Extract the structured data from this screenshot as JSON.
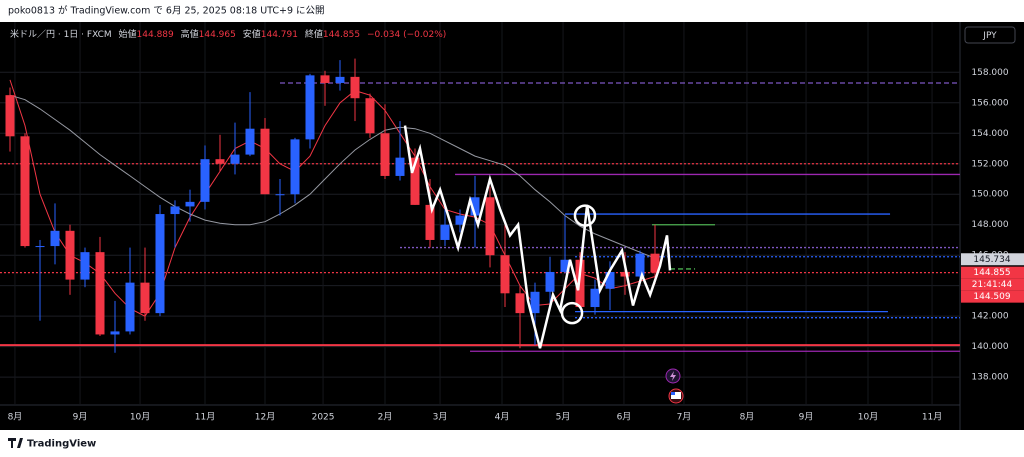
{
  "header": {
    "text": "poko0813 が TradingView.com で 6月 25, 2025 08:18 UTC+9 に公開"
  },
  "footer": {
    "brand": "TradingView"
  },
  "chart_data": {
    "type": "candlestick",
    "symbol": "米ドル／円 · 1日 · FXCM",
    "legend": {
      "open_label": "始値",
      "open": 144.889,
      "high_label": "高値",
      "high": 144.965,
      "low_label": "安値",
      "low": 144.791,
      "close_label": "終値",
      "close": 144.855,
      "change": "−0.034 (−0.02%)"
    },
    "currency": "JPY",
    "up_color": "#2962ff",
    "down_color": "#f23645",
    "x": [
      0,
      1,
      2,
      3,
      4,
      5,
      6,
      7,
      8,
      9,
      10,
      11,
      12,
      13,
      14,
      15,
      16,
      17,
      18,
      19,
      20,
      21,
      22,
      23,
      24,
      25,
      26,
      27,
      28,
      29,
      30,
      31,
      32,
      33,
      34,
      35,
      36,
      37,
      38,
      39,
      40,
      41,
      42,
      43
    ],
    "open": [
      156.5,
      153.8,
      146.6,
      146.6,
      147.6,
      144.4,
      146.2,
      140.8,
      141.0,
      144.2,
      142.2,
      148.7,
      149.2,
      149.5,
      152.3,
      152.0,
      152.6,
      154.3,
      150.0,
      150.0,
      153.6,
      157.8,
      157.3,
      157.7,
      156.3,
      154.0,
      151.2,
      152.4,
      149.3,
      147.0,
      148.0,
      148.6,
      149.8,
      146.0,
      143.5,
      142.2,
      143.6,
      144.9,
      145.7,
      142.6,
      143.8,
      144.9,
      144.6,
      146.1
    ],
    "high": [
      157.0,
      154.0,
      147.0,
      149.4,
      148.0,
      146.5,
      147.2,
      143.0,
      146.5,
      146.5,
      149.3,
      149.6,
      150.3,
      153.2,
      153.9,
      154.7,
      156.7,
      155.0,
      151.0,
      153.7,
      157.9,
      158.1,
      158.8,
      158.9,
      156.6,
      155.9,
      154.8,
      153.0,
      151.0,
      149.2,
      149.0,
      151.2,
      150.5,
      148.0,
      144.0,
      144.2,
      145.9,
      148.6,
      146.2,
      144.4,
      145.6,
      146.2,
      146.3,
      148.0
    ],
    "low": [
      152.8,
      146.5,
      141.7,
      145.4,
      143.4,
      143.9,
      140.7,
      139.6,
      140.8,
      141.7,
      142.0,
      146.5,
      148.2,
      149.0,
      151.5,
      151.3,
      152.5,
      150.0,
      148.6,
      149.4,
      153.0,
      155.8,
      156.8,
      154.8,
      153.7,
      151.0,
      150.9,
      149.3,
      146.5,
      146.6,
      147.5,
      146.5,
      145.2,
      142.6,
      139.9,
      140.1,
      142.4,
      144.8,
      142.5,
      142.1,
      142.4,
      143.4,
      144.0,
      144.1
    ],
    "close": [
      153.8,
      146.6,
      146.6,
      147.6,
      144.4,
      146.2,
      140.8,
      141.0,
      144.2,
      142.2,
      148.7,
      149.2,
      149.5,
      152.3,
      152.0,
      152.6,
      154.3,
      150.0,
      150.0,
      153.6,
      157.8,
      157.3,
      157.7,
      156.3,
      154.0,
      151.2,
      152.4,
      149.3,
      147.0,
      148.0,
      148.6,
      149.8,
      146.0,
      143.5,
      142.2,
      143.6,
      144.9,
      145.7,
      142.6,
      143.8,
      144.9,
      144.6,
      146.1,
      144.855
    ],
    "moving_averages": [
      {
        "color": "#f23645",
        "values": [
          157.5,
          154.5,
          150.0,
          147.5,
          146.0,
          145.5,
          144.8,
          143.5,
          142.5,
          142.0,
          143.5,
          146.5,
          148.5,
          150.0,
          151.5,
          153.0,
          153.5,
          153.0,
          152.0,
          151.5,
          152.5,
          154.5,
          156.0,
          156.8,
          156.5,
          155.5,
          154.0,
          152.5,
          150.5,
          149.0,
          148.7,
          148.5,
          148.0,
          146.0,
          144.0,
          142.7,
          142.8,
          143.8,
          144.8,
          144.5,
          143.8,
          144.0,
          144.3,
          144.6
        ]
      },
      {
        "color": "#9598a1",
        "values": [
          156.5,
          156.2,
          155.6,
          154.9,
          154.2,
          153.4,
          152.6,
          151.9,
          151.2,
          150.5,
          149.8,
          149.2,
          148.7,
          148.3,
          148.1,
          148.0,
          148.0,
          148.2,
          148.7,
          149.3,
          150.0,
          151.0,
          152.0,
          152.9,
          153.6,
          154.2,
          154.4,
          154.3,
          154.0,
          153.5,
          153.0,
          152.5,
          152.2,
          151.9,
          151.2,
          150.3,
          149.5,
          148.6,
          147.9,
          147.4,
          147.0,
          146.6,
          146.2,
          145.8
        ]
      }
    ],
    "zigzag": {
      "color": "#ffffff",
      "x": [
        26.33,
        26.8,
        27.33,
        28.13,
        28.67,
        29.87,
        30.67,
        31.2,
        32,
        32.67,
        33.33,
        33.87,
        34.53,
        35.33,
        36.2,
        36.67,
        37.33,
        37.87,
        38.47,
        39.33,
        40,
        40.8,
        41.53,
        42.13,
        42.67,
        43.33,
        43.8,
        44
      ],
      "y": [
        154.5,
        151.4,
        153,
        149,
        150.3,
        146.5,
        149.6,
        148,
        151,
        149,
        147.3,
        148,
        143,
        139.9,
        143.4,
        142.4,
        145.7,
        143.7,
        149.3,
        143.7,
        145,
        146.3,
        142.7,
        144.7,
        143.4,
        145.3,
        147.3,
        145
      ]
    },
    "circles": [
      {
        "x": 38.33,
        "y": 148.6
      },
      {
        "x": 37.47,
        "y": 142.2
      }
    ],
    "levels": [
      {
        "value": 157.3,
        "from": 18,
        "to": 63.33,
        "color": "#7e57c2",
        "style": "dashed"
      },
      {
        "value": 152.0,
        "from": -0.67,
        "to": 63.33,
        "color": "#f23645",
        "style": "dotted"
      },
      {
        "value": 151.3,
        "from": 29.67,
        "to": 63.33,
        "color": "#9c27b0",
        "style": "solid"
      },
      {
        "value": 148.7,
        "from": 37,
        "to": 58.67,
        "color": "#2962ff",
        "style": "solid"
      },
      {
        "value": 148.0,
        "from": 42.8,
        "to": 47,
        "color": "#4caf50",
        "style": "solid"
      },
      {
        "value": 146.5,
        "from": 26,
        "to": 63.33,
        "color": "#7e57c2",
        "style": "dotted"
      },
      {
        "value": 145.9,
        "from": 37.67,
        "to": 63.33,
        "color": "#2962ff",
        "style": "dotted"
      },
      {
        "value": 145.1,
        "from": 44,
        "to": 45.67,
        "color": "#4caf50",
        "style": "dashed"
      },
      {
        "value": 144.855,
        "from": -0.67,
        "to": 63.33,
        "color": "#f23645",
        "style": "dotted"
      },
      {
        "value": 142.3,
        "from": 37.67,
        "to": 58.53,
        "color": "#2962ff",
        "style": "solid"
      },
      {
        "value": 141.9,
        "from": 37.67,
        "to": 63.33,
        "color": "#2962ff",
        "style": "dotted"
      },
      {
        "value": 140.1,
        "from": -0.67,
        "to": 63.33,
        "color": "#f23645",
        "style": "thick"
      },
      {
        "value": 139.7,
        "from": 30.67,
        "to": 63.33,
        "color": "#9c27b0",
        "style": "solid"
      }
    ],
    "price_labels": [
      {
        "value": 145.734,
        "label": "145.734",
        "color": "#d1d4dc",
        "text_color": "#131722"
      },
      {
        "value": 144.855,
        "label": "144.855",
        "color": "#f23645",
        "text_color": "#ffffff"
      },
      {
        "value": 144.509,
        "label": "144.509",
        "color": "#f23645",
        "text_color": "#ffffff"
      }
    ],
    "countdown": "21:41:44",
    "xlim": [
      -0.6667,
      63.3333
    ],
    "ylim": [
      136.5,
      161.3
    ],
    "xticks": [
      {
        "value": 0.33,
        "label": "8月"
      },
      {
        "value": 4.67,
        "label": "9月"
      },
      {
        "value": 8.67,
        "label": "10月"
      },
      {
        "value": 13,
        "label": "11月"
      },
      {
        "value": 17,
        "label": "12月"
      },
      {
        "value": 20.87,
        "label": "2025"
      },
      {
        "value": 25,
        "label": "2月"
      },
      {
        "value": 28.67,
        "label": "3月"
      },
      {
        "value": 32.8,
        "label": "4月"
      },
      {
        "value": 36.87,
        "label": "5月"
      },
      {
        "value": 40.93,
        "label": "6月"
      },
      {
        "value": 44.93,
        "label": "7月"
      },
      {
        "value": 49.13,
        "label": "8月"
      },
      {
        "value": 53.07,
        "label": "9月"
      },
      {
        "value": 57.2,
        "label": "10月"
      },
      {
        "value": 61.47,
        "label": "11月"
      }
    ],
    "yticks": [
      {
        "value": 138,
        "label": "138.000"
      },
      {
        "value": 140,
        "label": "140.000"
      },
      {
        "value": 142,
        "label": "142.000"
      },
      {
        "value": 144,
        "label": "144.000"
      },
      {
        "value": 146,
        "label": "146.000"
      },
      {
        "value": 148,
        "label": "148.000"
      },
      {
        "value": 150,
        "label": "150.000"
      },
      {
        "value": 152,
        "label": "152.000"
      },
      {
        "value": 154,
        "label": "154.000"
      },
      {
        "value": 156,
        "label": "156.000"
      },
      {
        "value": 158,
        "label": "158.000"
      }
    ],
    "grid": true
  }
}
